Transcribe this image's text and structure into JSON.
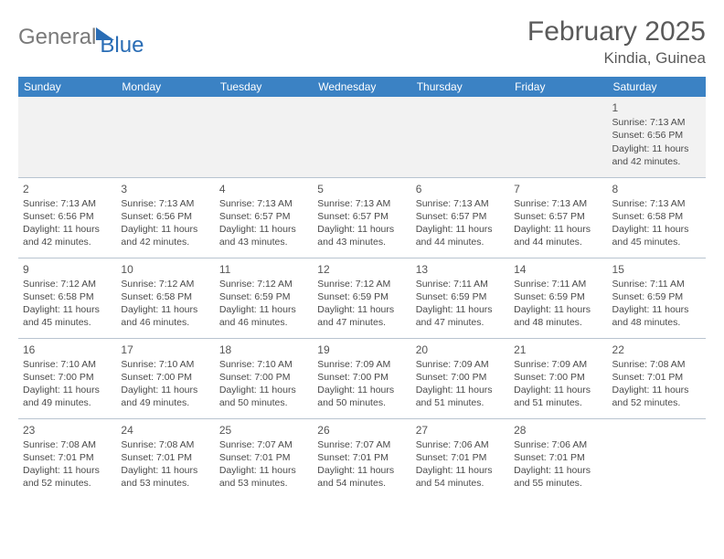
{
  "logo": {
    "part1": "General",
    "part2": "Blue"
  },
  "title": "February 2025",
  "location": "Kindia, Guinea",
  "headers": [
    "Sunday",
    "Monday",
    "Tuesday",
    "Wednesday",
    "Thursday",
    "Friday",
    "Saturday"
  ],
  "colors": {
    "header_bg": "#3b82c4",
    "header_fg": "#ffffff",
    "week1_bg": "#f2f2f2",
    "rule": "#b8c4d0",
    "text": "#4a4a4a",
    "logo_gray": "#7a7a7a",
    "logo_blue": "#2a6db5"
  },
  "weeks": [
    [
      null,
      null,
      null,
      null,
      null,
      null,
      {
        "n": "1",
        "sr": "7:13 AM",
        "ss": "6:56 PM",
        "dl": "11 hours and 42 minutes."
      }
    ],
    [
      {
        "n": "2",
        "sr": "7:13 AM",
        "ss": "6:56 PM",
        "dl": "11 hours and 42 minutes."
      },
      {
        "n": "3",
        "sr": "7:13 AM",
        "ss": "6:56 PM",
        "dl": "11 hours and 42 minutes."
      },
      {
        "n": "4",
        "sr": "7:13 AM",
        "ss": "6:57 PM",
        "dl": "11 hours and 43 minutes."
      },
      {
        "n": "5",
        "sr": "7:13 AM",
        "ss": "6:57 PM",
        "dl": "11 hours and 43 minutes."
      },
      {
        "n": "6",
        "sr": "7:13 AM",
        "ss": "6:57 PM",
        "dl": "11 hours and 44 minutes."
      },
      {
        "n": "7",
        "sr": "7:13 AM",
        "ss": "6:57 PM",
        "dl": "11 hours and 44 minutes."
      },
      {
        "n": "8",
        "sr": "7:13 AM",
        "ss": "6:58 PM",
        "dl": "11 hours and 45 minutes."
      }
    ],
    [
      {
        "n": "9",
        "sr": "7:12 AM",
        "ss": "6:58 PM",
        "dl": "11 hours and 45 minutes."
      },
      {
        "n": "10",
        "sr": "7:12 AM",
        "ss": "6:58 PM",
        "dl": "11 hours and 46 minutes."
      },
      {
        "n": "11",
        "sr": "7:12 AM",
        "ss": "6:59 PM",
        "dl": "11 hours and 46 minutes."
      },
      {
        "n": "12",
        "sr": "7:12 AM",
        "ss": "6:59 PM",
        "dl": "11 hours and 47 minutes."
      },
      {
        "n": "13",
        "sr": "7:11 AM",
        "ss": "6:59 PM",
        "dl": "11 hours and 47 minutes."
      },
      {
        "n": "14",
        "sr": "7:11 AM",
        "ss": "6:59 PM",
        "dl": "11 hours and 48 minutes."
      },
      {
        "n": "15",
        "sr": "7:11 AM",
        "ss": "6:59 PM",
        "dl": "11 hours and 48 minutes."
      }
    ],
    [
      {
        "n": "16",
        "sr": "7:10 AM",
        "ss": "7:00 PM",
        "dl": "11 hours and 49 minutes."
      },
      {
        "n": "17",
        "sr": "7:10 AM",
        "ss": "7:00 PM",
        "dl": "11 hours and 49 minutes."
      },
      {
        "n": "18",
        "sr": "7:10 AM",
        "ss": "7:00 PM",
        "dl": "11 hours and 50 minutes."
      },
      {
        "n": "19",
        "sr": "7:09 AM",
        "ss": "7:00 PM",
        "dl": "11 hours and 50 minutes."
      },
      {
        "n": "20",
        "sr": "7:09 AM",
        "ss": "7:00 PM",
        "dl": "11 hours and 51 minutes."
      },
      {
        "n": "21",
        "sr": "7:09 AM",
        "ss": "7:00 PM",
        "dl": "11 hours and 51 minutes."
      },
      {
        "n": "22",
        "sr": "7:08 AM",
        "ss": "7:01 PM",
        "dl": "11 hours and 52 minutes."
      }
    ],
    [
      {
        "n": "23",
        "sr": "7:08 AM",
        "ss": "7:01 PM",
        "dl": "11 hours and 52 minutes."
      },
      {
        "n": "24",
        "sr": "7:08 AM",
        "ss": "7:01 PM",
        "dl": "11 hours and 53 minutes."
      },
      {
        "n": "25",
        "sr": "7:07 AM",
        "ss": "7:01 PM",
        "dl": "11 hours and 53 minutes."
      },
      {
        "n": "26",
        "sr": "7:07 AM",
        "ss": "7:01 PM",
        "dl": "11 hours and 54 minutes."
      },
      {
        "n": "27",
        "sr": "7:06 AM",
        "ss": "7:01 PM",
        "dl": "11 hours and 54 minutes."
      },
      {
        "n": "28",
        "sr": "7:06 AM",
        "ss": "7:01 PM",
        "dl": "11 hours and 55 minutes."
      },
      null
    ]
  ],
  "labels": {
    "sunrise": "Sunrise: ",
    "sunset": "Sunset: ",
    "daylight": "Daylight: "
  }
}
